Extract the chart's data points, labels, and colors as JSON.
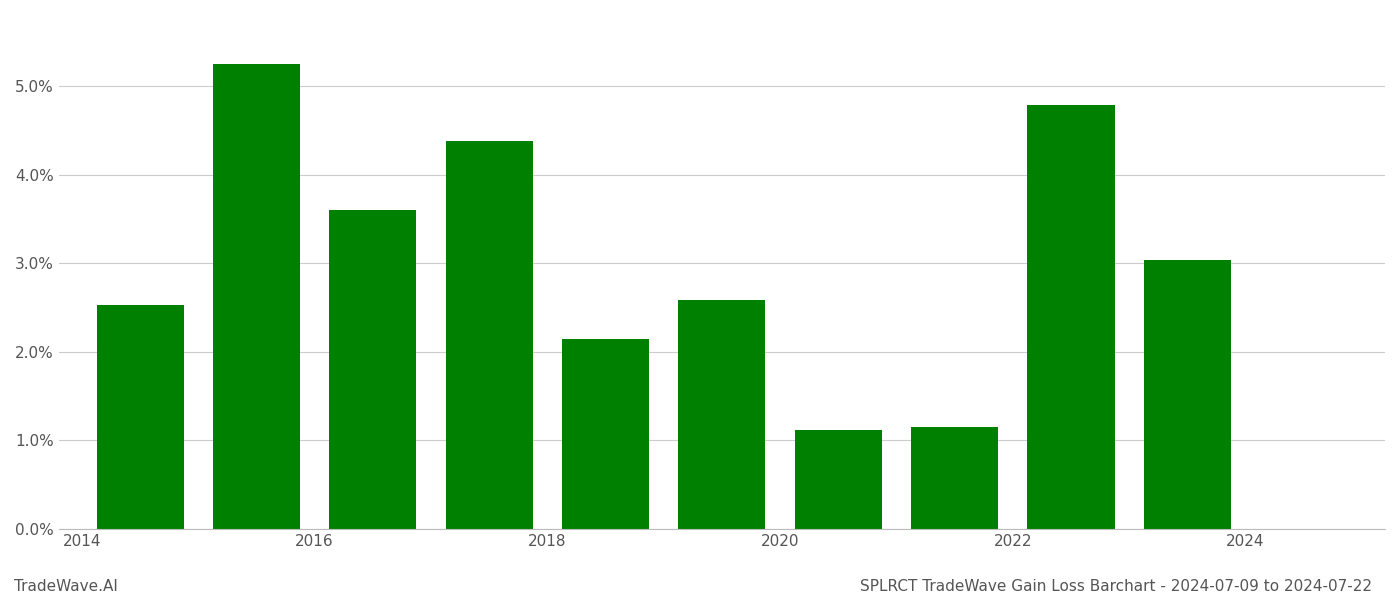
{
  "years": [
    2014,
    2015,
    2016,
    2017,
    2018,
    2019,
    2020,
    2021,
    2022,
    2023
  ],
  "values": [
    0.0253,
    0.0525,
    0.036,
    0.0438,
    0.0215,
    0.0258,
    0.0112,
    0.0115,
    0.0478,
    0.0304
  ],
  "bar_color": "#008000",
  "title": "SPLRCT TradeWave Gain Loss Barchart - 2024-07-09 to 2024-07-22",
  "watermark": "TradeWave.AI",
  "ylim_min": 0.0,
  "ylim_max": 0.058,
  "ytick_values": [
    0.0,
    0.01,
    0.02,
    0.03,
    0.04,
    0.05
  ],
  "xtick_positions": [
    2013.5,
    2015.5,
    2017.5,
    2019.5,
    2021.5,
    2023.5
  ],
  "xtick_labels": [
    "2014",
    "2016",
    "2018",
    "2020",
    "2022",
    "2024"
  ],
  "xlim_min": 2013.3,
  "xlim_max": 2024.7,
  "background_color": "#ffffff",
  "grid_color": "#cccccc",
  "title_fontsize": 11,
  "watermark_fontsize": 11,
  "tick_fontsize": 11,
  "bar_width": 0.75
}
